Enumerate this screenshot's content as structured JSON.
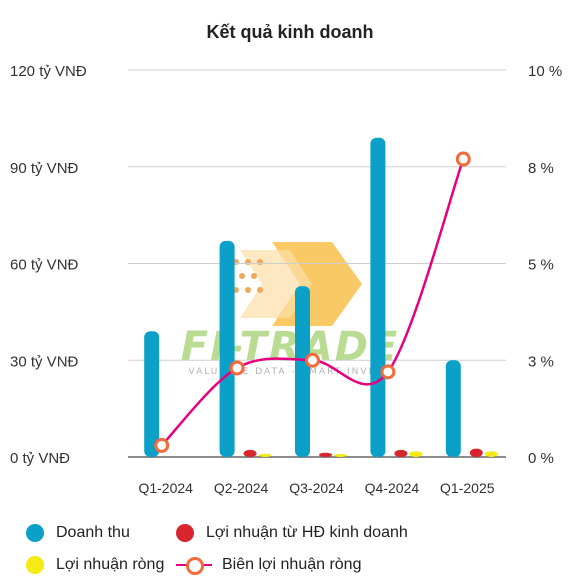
{
  "chart_data": {
    "type": "bar",
    "title": "Kết quả kinh doanh",
    "categories": [
      "Q1-2024",
      "Q2-2024",
      "Q3-2024",
      "Q4-2024",
      "Q1-2025"
    ],
    "y_left": {
      "ticks": [
        "0 tỷ VNĐ",
        "30 tỷ VNĐ",
        "60 tỷ VNĐ",
        "90 tỷ VNĐ",
        "120 tỷ VNĐ"
      ],
      "range": [
        0,
        120
      ]
    },
    "y_right": {
      "ticks": [
        "0 %",
        "3 %",
        "5 %",
        "8 %",
        "10 %"
      ],
      "range": [
        0,
        10
      ]
    },
    "series": [
      {
        "name": "Doanh thu",
        "type": "bar",
        "color": "#0aa0c8",
        "values": [
          39,
          67,
          53,
          99,
          30
        ]
      },
      {
        "name": "Lợi nhuận từ HĐ kinh doanh",
        "type": "bar",
        "color": "#d9262e",
        "values": [
          0,
          2.2,
          1.3,
          2.2,
          2.6
        ]
      },
      {
        "name": "Lợi nhuận ròng",
        "type": "bar",
        "color": "#f5ea14",
        "values": [
          0,
          1,
          0.8,
          1.8,
          1.8
        ]
      },
      {
        "name": "Biên lợi nhuận ròng",
        "type": "line",
        "axis": "right",
        "color": "#e6007e",
        "marker_color": "#f26b3a",
        "values": [
          0.3,
          2.3,
          2.5,
          2.2,
          7.7
        ]
      }
    ],
    "grid": true,
    "legend_position": "bottom",
    "watermark": {
      "text": "FI-TRADE",
      "tagline": "VALUABLE DATA - SMART INVEST"
    }
  }
}
